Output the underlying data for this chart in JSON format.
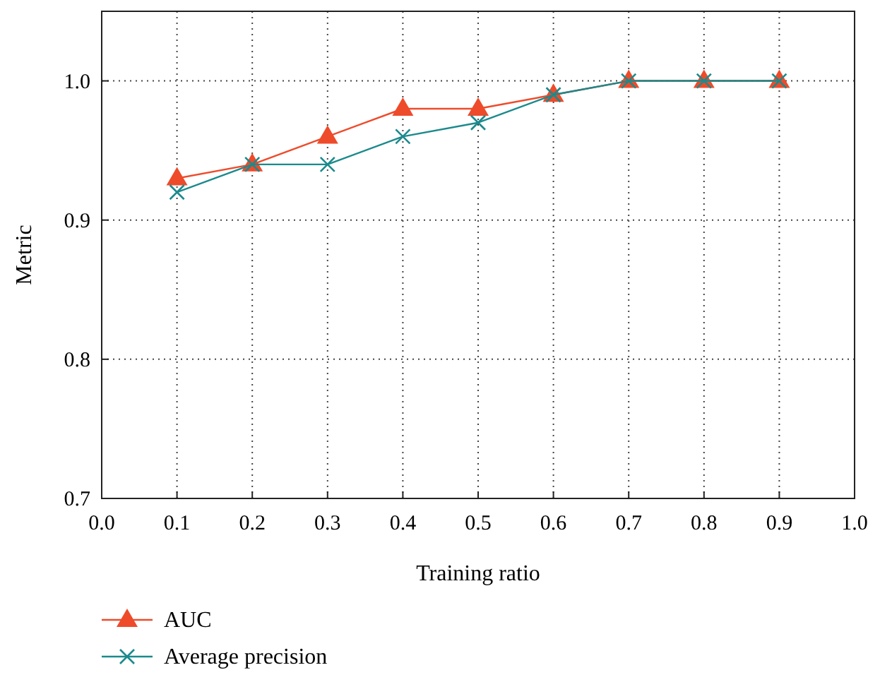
{
  "chart_data": {
    "type": "line",
    "xlabel": "Training ratio",
    "ylabel": "Metric",
    "x": [
      0.1,
      0.2,
      0.3,
      0.4,
      0.5,
      0.6,
      0.7,
      0.8,
      0.9
    ],
    "series": [
      {
        "name": "AUC",
        "color": "#ee4b2b",
        "marker": "triangle",
        "values": [
          0.93,
          0.94,
          0.96,
          0.98,
          0.98,
          0.99,
          1.0,
          1.0,
          1.0
        ]
      },
      {
        "name": "Average precision",
        "color": "#1b8a8c",
        "marker": "cross",
        "values": [
          0.92,
          0.94,
          0.94,
          0.96,
          0.97,
          0.99,
          1.0,
          1.0,
          1.0
        ]
      }
    ],
    "xlim": [
      0,
      1
    ],
    "xticks": [
      {
        "value": 0,
        "label": "0.0"
      },
      0.1,
      0.2,
      0.3,
      0.4,
      0.5,
      0.6,
      0.7,
      0.8,
      0.9,
      {
        "value": 1,
        "label": "1.0"
      }
    ],
    "ylim": [
      0.7,
      1.05
    ],
    "yticks": [
      0.7,
      0.8,
      0.9,
      {
        "value": 1,
        "label": "1.0"
      }
    ],
    "grid": true,
    "legend": "bottom left",
    "line_style": "solid"
  }
}
